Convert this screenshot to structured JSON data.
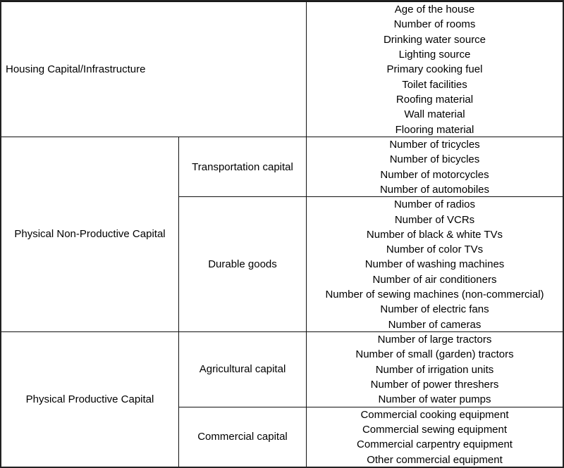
{
  "table": {
    "groups": [
      {
        "label": "Housing Capital/Infrastructure",
        "items": [
          "Age of the house",
          "Number of rooms",
          "Drinking water source",
          "Lighting source",
          "Primary cooking fuel",
          "Toilet facilities",
          "Roofing material",
          "Wall material",
          "Flooring material"
        ]
      },
      {
        "label": "Physical Non-Productive Capital",
        "subgroups": [
          {
            "label": "Transportation capital",
            "items": [
              "Number of tricycles",
              "Number of bicycles",
              "Number of motorcycles",
              "Number of automobiles"
            ]
          },
          {
            "label": "Durable goods",
            "items": [
              "Number of radios",
              "Number of VCRs",
              "Number of black & white TVs",
              "Number of color TVs",
              "Number of washing machines",
              "Number of air conditioners",
              "Number of sewing machines (non-commercial)",
              "Number of electric fans",
              "Number of cameras"
            ]
          }
        ]
      },
      {
        "label": "Physical Productive Capital",
        "subgroups": [
          {
            "label": "Agricultural capital",
            "items": [
              "Number of large tractors",
              "Number of small (garden) tractors",
              "Number of irrigation units",
              "Number of power threshers",
              "Number of water pumps"
            ]
          },
          {
            "label": "Commercial capital",
            "items": [
              "Commercial cooking equipment",
              "Commercial sewing equipment",
              "Commercial carpentry equipment",
              "Other commercial equipment"
            ]
          }
        ]
      }
    ]
  }
}
